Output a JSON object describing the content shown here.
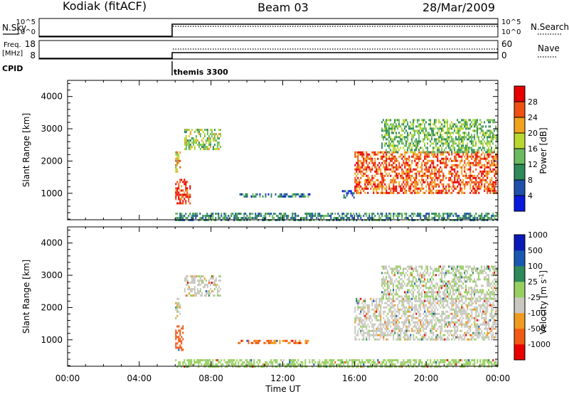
{
  "header": {
    "station": "Kodiak (fitACF)",
    "beam": "Beam 03",
    "date": "28/Mar/2009"
  },
  "panel_nsky": {
    "left_label": "N.Sky",
    "right_label": "N.Search",
    "left_ticks": [
      "10^5",
      "10^0"
    ],
    "right_ticks": [
      "10^5",
      "10^0"
    ]
  },
  "panel_freq": {
    "left_label_1": "Freq.",
    "left_label_2": "[MHz]",
    "right_label": "Nave",
    "left_ticks": [
      "18",
      "8"
    ],
    "right_ticks": [
      "60",
      "0"
    ]
  },
  "cpid": {
    "label": "CPID",
    "mode": "themis 3300"
  },
  "colors": {
    "power": [
      "#0a1adc",
      "#2050aa",
      "#2e8a58",
      "#6cba60",
      "#b8d830",
      "#f0a41e",
      "#f05014",
      "#e60000"
    ],
    "velocity": [
      "#e80000",
      "#f05a14",
      "#f09a20",
      "#c8c8c0",
      "#98d060",
      "#2e8a58",
      "#1858b0",
      "#0a1ab8"
    ],
    "velocity_gray": "#c8c8c0"
  },
  "chart_data": [
    {
      "type": "heatmap",
      "name": "power",
      "xlabel": "",
      "ylabel": "Slant Range [km]",
      "xlim": [
        0,
        24
      ],
      "ylim": [
        180,
        4500
      ],
      "y_ticks": [
        "1000",
        "2000",
        "3000",
        "4000"
      ],
      "colorbar_label": "Power [dB]",
      "colorbar_ticks": [
        "4",
        "8",
        "12",
        "16",
        "20",
        "24",
        "28"
      ],
      "colorbar_range": [
        0,
        32
      ],
      "radar_on_hour": 6.0,
      "echo_regions": [
        {
          "t": [
            6.0,
            6.8
          ],
          "r": [
            700,
            1450
          ],
          "level": 28
        },
        {
          "t": [
            6.0,
            6.3
          ],
          "r": [
            1700,
            2300
          ],
          "level": 20
        },
        {
          "t": [
            6.5,
            8.5
          ],
          "r": [
            2400,
            3000
          ],
          "level": 16
        },
        {
          "t": [
            9.5,
            13.5
          ],
          "r": [
            900,
            1000
          ],
          "level": 8
        },
        {
          "t": [
            15.3,
            16.0
          ],
          "r": [
            900,
            1100
          ],
          "level": 6
        },
        {
          "t": [
            16.0,
            24.0
          ],
          "r": [
            1000,
            2300
          ],
          "level": 26
        },
        {
          "t": [
            17.5,
            24.0
          ],
          "r": [
            2300,
            3300
          ],
          "level": 14
        },
        {
          "t": [
            6.0,
            24.0
          ],
          "r": [
            180,
            400
          ],
          "level": 10
        }
      ]
    },
    {
      "type": "heatmap",
      "name": "velocity",
      "xlabel": "Time UT",
      "ylabel": "Slant Range [km]",
      "xlim": [
        0,
        24
      ],
      "ylim": [
        180,
        4500
      ],
      "x_ticks": [
        "00:00",
        "04:00",
        "08:00",
        "12:00",
        "16:00",
        "20:00",
        "00:00"
      ],
      "y_ticks": [
        "1000",
        "2000",
        "3000",
        "4000"
      ],
      "colorbar_label": "Velocity [m s",
      "colorbar_label_sup": "-1",
      "colorbar_label_end": "]",
      "colorbar_ticks": [
        "1000",
        "500",
        "100",
        "25",
        "-25",
        "-100",
        "-500",
        "-1000"
      ],
      "radar_on_hour": 6.0,
      "echo_regions": [
        {
          "t": [
            6.0,
            6.4
          ],
          "r": [
            700,
            1450
          ],
          "value": -200
        },
        {
          "t": [
            6.0,
            6.3
          ],
          "r": [
            1700,
            2300
          ],
          "value": 0
        },
        {
          "t": [
            6.5,
            8.5
          ],
          "r": [
            2400,
            3000
          ],
          "value": 0
        },
        {
          "t": [
            9.5,
            13.5
          ],
          "r": [
            900,
            1000
          ],
          "value": -100
        },
        {
          "t": [
            16.0,
            24.0
          ],
          "r": [
            1000,
            2300
          ],
          "value": 0
        },
        {
          "t": [
            17.5,
            24.0
          ],
          "r": [
            2300,
            3300
          ],
          "value": 20
        },
        {
          "t": [
            6.0,
            24.0
          ],
          "r": [
            180,
            400
          ],
          "value": 50
        }
      ]
    }
  ]
}
